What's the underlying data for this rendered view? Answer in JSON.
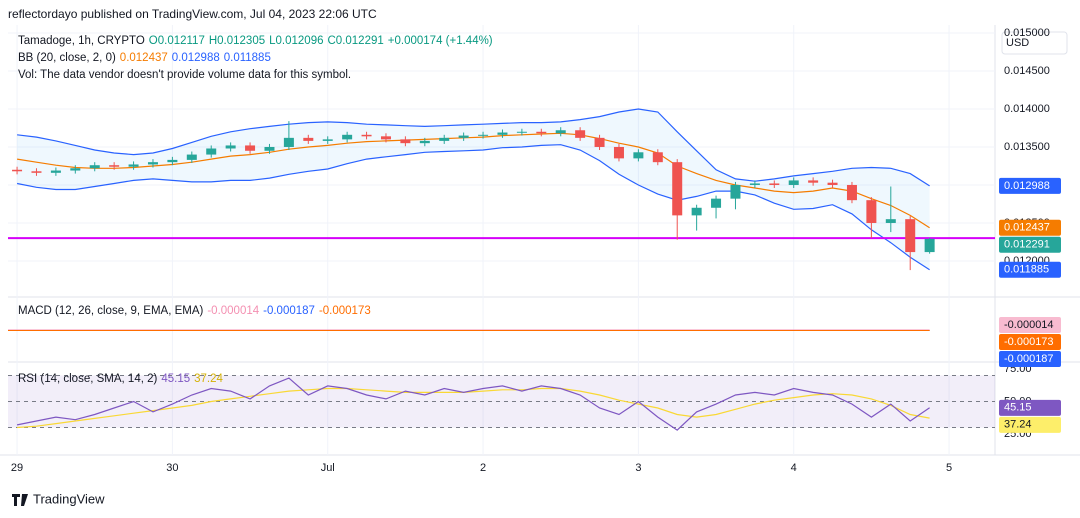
{
  "header": {
    "publisher": "reflectordayo published on TradingView.com, Jul 04, 2023 22:06 UTC",
    "currency": "USD",
    "footer": "TradingView"
  },
  "chart_data": [
    {
      "type": "candlestick",
      "title": "Tamadoge, 1h, CRYPTO",
      "ohlc_text": [
        "O0.012117",
        "H0.012305",
        "L0.012096",
        "C0.012291",
        "+0.000174 (+1.44%)"
      ],
      "bb_title": "BB (20, close, 2, 0)",
      "vol_text": "Vol: The data vendor doesn't provide volume data for this symbol.",
      "x": [
        0,
        3,
        6,
        9,
        12,
        15,
        18,
        21,
        24,
        27,
        30,
        33,
        36,
        39,
        42,
        45,
        48,
        51,
        54,
        57,
        60,
        63,
        66,
        69,
        72,
        75,
        78,
        81,
        84,
        87,
        90,
        93,
        96,
        99,
        102,
        105,
        108,
        111,
        114,
        117,
        120,
        123,
        126,
        129,
        132,
        135,
        138,
        141
      ],
      "open": [
        0.0132,
        0.01318,
        0.01316,
        0.01319,
        0.01322,
        0.01326,
        0.01324,
        0.01327,
        0.0133,
        0.01333,
        0.0134,
        0.01348,
        0.01352,
        0.01345,
        0.0135,
        0.01362,
        0.01358,
        0.0136,
        0.01366,
        0.01364,
        0.0136,
        0.01355,
        0.01358,
        0.01362,
        0.01365,
        0.01366,
        0.01369,
        0.0137,
        0.01368,
        0.01372,
        0.01362,
        0.0135,
        0.01335,
        0.01343,
        0.0133,
        0.0126,
        0.0127,
        0.01282,
        0.013,
        0.01302,
        0.013,
        0.01306,
        0.01303,
        0.013,
        0.0128,
        0.0125,
        0.01255,
        0.012117
      ],
      "high": [
        0.01324,
        0.01322,
        0.01323,
        0.01326,
        0.0133,
        0.0133,
        0.01331,
        0.01334,
        0.01337,
        0.01344,
        0.01352,
        0.01356,
        0.01356,
        0.01354,
        0.01384,
        0.01366,
        0.01364,
        0.0137,
        0.0137,
        0.01368,
        0.01364,
        0.01362,
        0.01366,
        0.01369,
        0.0137,
        0.01373,
        0.01374,
        0.01374,
        0.01376,
        0.01376,
        0.01366,
        0.01354,
        0.01347,
        0.01347,
        0.01334,
        0.01274,
        0.01286,
        0.01304,
        0.01306,
        0.01306,
        0.0131,
        0.0131,
        0.01307,
        0.01304,
        0.01284,
        0.01298,
        0.01259,
        0.012305
      ],
      "low": [
        0.01314,
        0.01312,
        0.01312,
        0.01315,
        0.01318,
        0.0132,
        0.0132,
        0.01323,
        0.01326,
        0.01329,
        0.01336,
        0.01344,
        0.01341,
        0.01341,
        0.01346,
        0.01354,
        0.01354,
        0.01356,
        0.0136,
        0.01356,
        0.01351,
        0.01351,
        0.01354,
        0.01358,
        0.01361,
        0.01362,
        0.01365,
        0.01364,
        0.01364,
        0.01358,
        0.01346,
        0.01331,
        0.01331,
        0.01326,
        0.01228,
        0.0124,
        0.01256,
        0.01268,
        0.01296,
        0.01296,
        0.01296,
        0.01299,
        0.01296,
        0.01276,
        0.0123,
        0.01238,
        0.01188,
        0.012096
      ],
      "close": [
        0.01318,
        0.01316,
        0.01319,
        0.01322,
        0.01326,
        0.01324,
        0.01327,
        0.0133,
        0.01333,
        0.0134,
        0.01348,
        0.01352,
        0.01345,
        0.0135,
        0.01362,
        0.01358,
        0.0136,
        0.01366,
        0.01364,
        0.0136,
        0.01355,
        0.01358,
        0.01362,
        0.01365,
        0.01366,
        0.01369,
        0.0137,
        0.01368,
        0.01372,
        0.01362,
        0.0135,
        0.01335,
        0.01343,
        0.0133,
        0.0126,
        0.0127,
        0.01282,
        0.013,
        0.01302,
        0.013,
        0.01306,
        0.01303,
        0.013,
        0.0128,
        0.0125,
        0.01255,
        0.012117,
        0.012291
      ],
      "up_color": "#26a69a",
      "down_color": "#ef5350",
      "overlays": [
        {
          "color": "#f57c00",
          "values": [
            0.01334,
            0.0133,
            0.01326,
            0.01323,
            0.01322,
            0.01322,
            0.01323,
            0.01325,
            0.01327,
            0.0133,
            0.01334,
            0.01338,
            0.0134,
            0.01343,
            0.01347,
            0.0135,
            0.01352,
            0.01355,
            0.01357,
            0.01358,
            0.01359,
            0.0136,
            0.01361,
            0.01362,
            0.01363,
            0.01365,
            0.01366,
            0.01367,
            0.01368,
            0.01366,
            0.01361,
            0.01355,
            0.0135,
            0.01342,
            0.01325,
            0.01315,
            0.01306,
            0.013,
            0.01296,
            0.01292,
            0.0129,
            0.01292,
            0.01296,
            0.01292,
            0.01282,
            0.01273,
            0.0126,
            0.012437
          ]
        },
        {
          "color": "#2962ff",
          "values": [
            0.01366,
            0.01363,
            0.01358,
            0.01352,
            0.01346,
            0.01342,
            0.0134,
            0.01342,
            0.01348,
            0.01356,
            0.01364,
            0.0137,
            0.01374,
            0.01377,
            0.0138,
            0.01382,
            0.01383,
            0.01382,
            0.0138,
            0.01379,
            0.01378,
            0.01377,
            0.01378,
            0.01379,
            0.0138,
            0.01381,
            0.01382,
            0.01382,
            0.01383,
            0.01386,
            0.0139,
            0.01396,
            0.014,
            0.01396,
            0.0137,
            0.01345,
            0.0132,
            0.01308,
            0.01305,
            0.01308,
            0.01312,
            0.01315,
            0.01318,
            0.01322,
            0.01323,
            0.01322,
            0.01315,
            0.012988
          ]
        },
        {
          "color": "#2962ff",
          "values": [
            0.01302,
            0.01297,
            0.01294,
            0.01294,
            0.01298,
            0.01302,
            0.01306,
            0.01308,
            0.01306,
            0.01304,
            0.01304,
            0.01306,
            0.01306,
            0.01309,
            0.01314,
            0.01318,
            0.01321,
            0.01328,
            0.01334,
            0.01337,
            0.0134,
            0.01343,
            0.01344,
            0.01345,
            0.01346,
            0.01349,
            0.0135,
            0.01352,
            0.01353,
            0.01346,
            0.01332,
            0.01314,
            0.013,
            0.01288,
            0.0128,
            0.01285,
            0.01292,
            0.01292,
            0.01287,
            0.01276,
            0.01268,
            0.01269,
            0.01274,
            0.01262,
            0.01241,
            0.01224,
            0.01205,
            0.011885
          ]
        }
      ],
      "band_fill": "rgba(33,150,243,0.07)",
      "hline": {
        "value": 0.0123,
        "color": "#d500f9"
      },
      "xlim": [
        -1.4,
        151.1
      ],
      "xticks": [
        {
          "value": 0,
          "label": "29"
        },
        {
          "value": 24,
          "label": "30"
        },
        {
          "value": 48,
          "label": "Jul"
        },
        {
          "value": 72,
          "label": "2"
        },
        {
          "value": 96,
          "label": "3"
        },
        {
          "value": 120,
          "label": "4"
        },
        {
          "value": 144,
          "label": "5"
        }
      ],
      "ylim": [
        0.011526,
        0.015039
      ],
      "yticks": [
        {
          "value": 0.015,
          "label": "0.015000"
        },
        {
          "value": 0.0145,
          "label": "0.014500"
        },
        {
          "value": 0.014,
          "label": "0.014000"
        },
        {
          "value": 0.0135,
          "label": "0.013500"
        },
        {
          "value": 0.013,
          "label": "0.013000"
        },
        {
          "value": 0.0125,
          "label": "0.012500"
        },
        {
          "value": 0.012,
          "label": "0.012000"
        }
      ],
      "grid": true
    },
    {
      "type": "flat",
      "title": "MACD (12, 26, close, 9, EMA, EMA)",
      "lines": [
        {
          "color": "#f48fb1",
          "value": -1.4e-05
        },
        {
          "color": "#2962ff",
          "value": -0.000187
        },
        {
          "color": "#ff6d00",
          "value": -0.000173
        }
      ],
      "ylim": [
        -0.01,
        0.01
      ]
    },
    {
      "type": "line",
      "title": "RSI (14, close, SMA, 14, 2)",
      "x": [
        0,
        3,
        6,
        9,
        12,
        15,
        18,
        21,
        24,
        27,
        30,
        33,
        36,
        39,
        42,
        45,
        48,
        51,
        54,
        57,
        60,
        63,
        66,
        69,
        72,
        75,
        78,
        81,
        84,
        87,
        90,
        93,
        96,
        99,
        102,
        105,
        108,
        111,
        114,
        117,
        120,
        123,
        126,
        129,
        132,
        135,
        138,
        141
      ],
      "series": [
        {
          "color": "#7e57c2",
          "values": [
            32,
            35,
            38,
            36,
            40,
            45,
            50,
            42,
            48,
            55,
            60,
            58,
            52,
            62,
            68,
            55,
            62,
            60,
            55,
            52,
            58,
            55,
            60,
            57,
            60,
            62,
            58,
            62,
            60,
            55,
            45,
            40,
            50,
            38,
            28,
            42,
            48,
            55,
            57,
            55,
            60,
            57,
            55,
            48,
            38,
            48,
            35,
            45.15
          ]
        },
        {
          "color": "#f9d835",
          "values": [
            30,
            31,
            33,
            35,
            37,
            39,
            41,
            43,
            45,
            47,
            50,
            52,
            54,
            56,
            58,
            59,
            60,
            60,
            59,
            58,
            57,
            57,
            57,
            57,
            58,
            59,
            59,
            60,
            60,
            58,
            55,
            51,
            48,
            45,
            40,
            38,
            40,
            44,
            48,
            51,
            53,
            55,
            56,
            55,
            52,
            47,
            40,
            37.24
          ]
        }
      ],
      "band": [
        30,
        70
      ],
      "levels": [
        30,
        50,
        70
      ],
      "ylim": [
        12.7,
        80.4
      ],
      "yticks": [
        {
          "value": 75,
          "label": "75.00"
        },
        {
          "value": 50,
          "label": "50.00"
        },
        {
          "value": 25,
          "label": "25.00"
        }
      ]
    }
  ]
}
